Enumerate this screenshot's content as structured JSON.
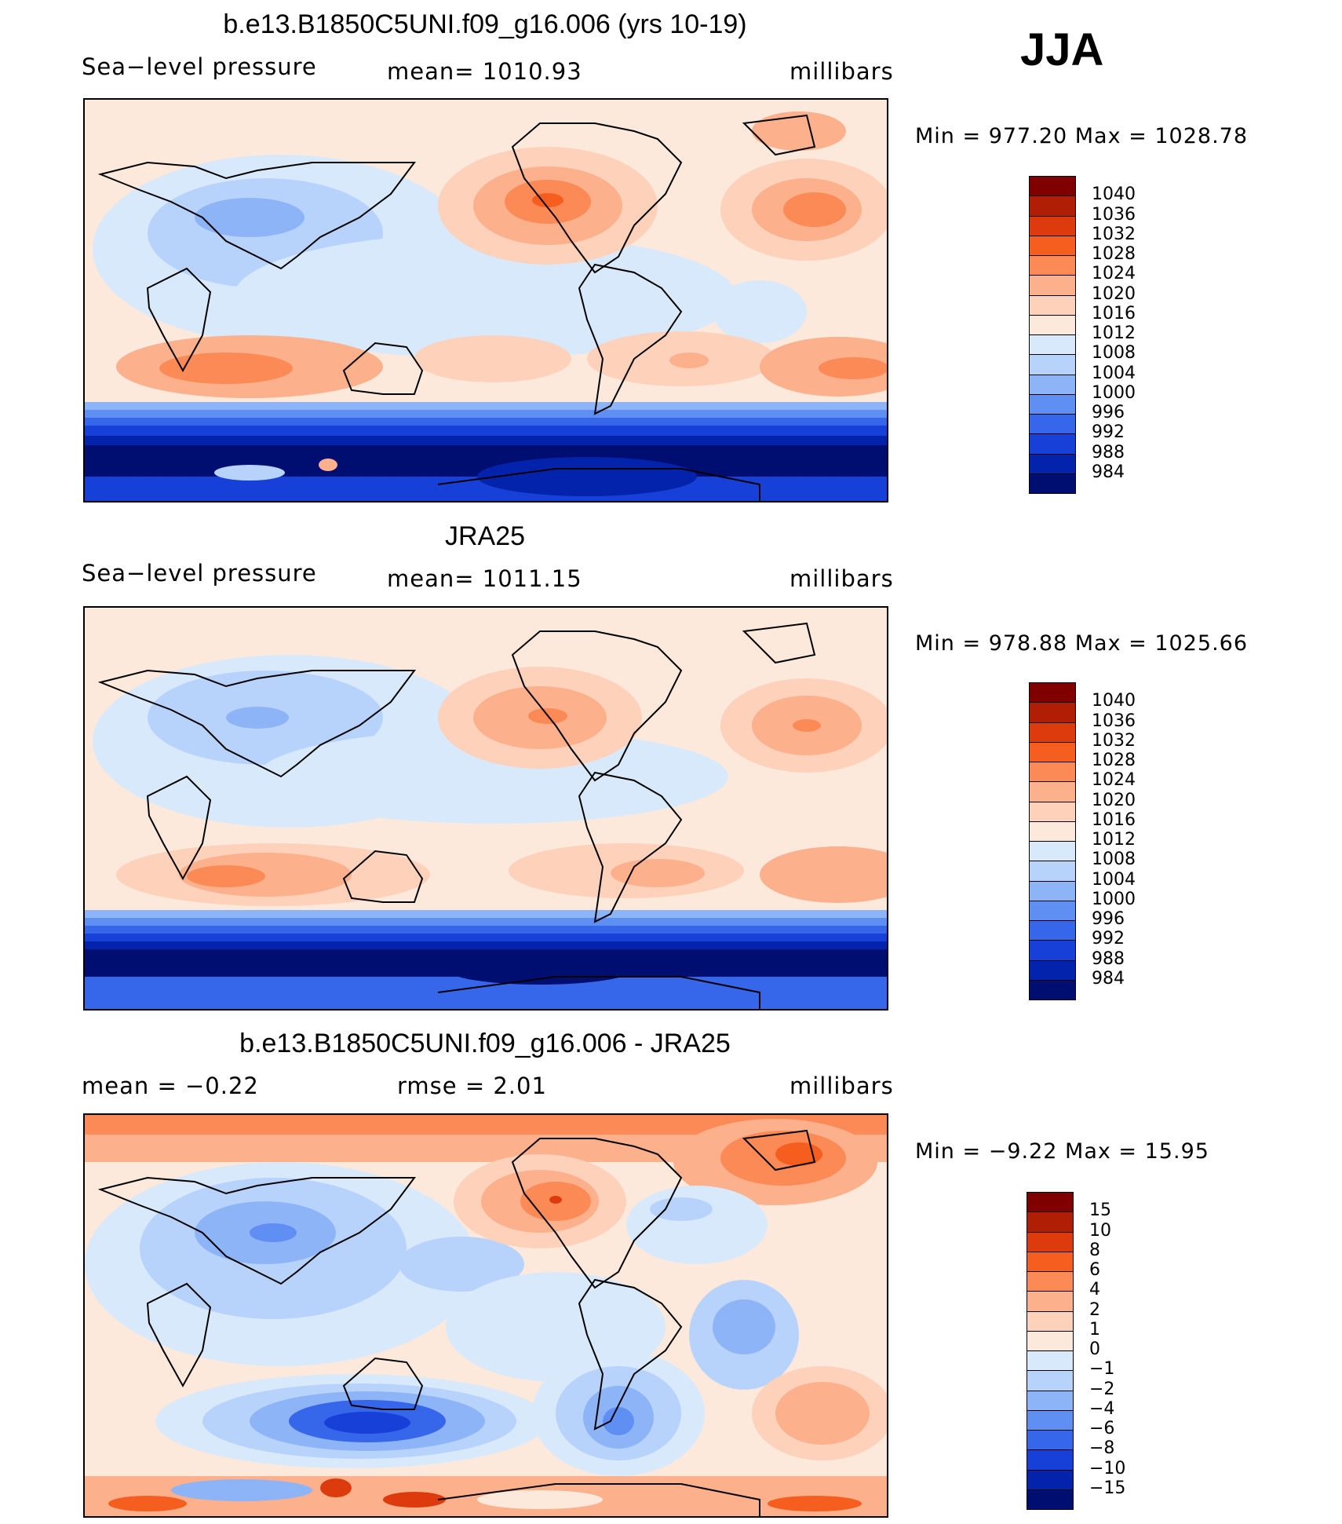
{
  "season": "JJA",
  "panels": [
    {
      "title": "b.e13.B1850C5UNI.f09_g16.006 (yrs 10-19)",
      "left": "Sea−level pressure",
      "center": "mean=  1010.93",
      "right": "millibars",
      "minmax": "Min  =  977.20  Max  =  1028.78",
      "kind": "abs"
    },
    {
      "title": "JRA25",
      "left": "Sea−level pressure",
      "center": "mean=  1011.15",
      "right": "millibars",
      "minmax": "Min  =  978.88  Max  =  1025.66",
      "kind": "abs2"
    },
    {
      "title": "b.e13.B1850C5UNI.f09_g16.006 - JRA25",
      "left": "mean  =     −0.22",
      "center": "rmse  =     2.01",
      "right": "millibars",
      "minmax": "Min  =    −9.22  Max  =     15.95",
      "kind": "diff"
    }
  ],
  "colorbars": {
    "abs": {
      "labels": [
        "1040",
        "1036",
        "1032",
        "1028",
        "1024",
        "1020",
        "1016",
        "1012",
        "1008",
        "1004",
        "1000",
        "996",
        "992",
        "988",
        "984"
      ],
      "colors": [
        "#800000",
        "#b01e05",
        "#dd3b0e",
        "#f65e1f",
        "#fc8a56",
        "#fcb08b",
        "#fdd1ba",
        "#fde9db",
        "#d8e9fb",
        "#b8d3fb",
        "#8eb4f8",
        "#5f8ff3",
        "#3666ea",
        "#1640d7",
        "#0423ad",
        "#000e72"
      ]
    },
    "diff": {
      "labels": [
        "15",
        "10",
        "8",
        "6",
        "4",
        "2",
        "1",
        "0",
        "−1",
        "−2",
        "−4",
        "−6",
        "−8",
        "−10",
        "−15"
      ],
      "colors": [
        "#800000",
        "#b01e05",
        "#dd3b0e",
        "#f65e1f",
        "#fc8a56",
        "#fcb08b",
        "#fdd1ba",
        "#fde9db",
        "#d8e9fb",
        "#b8d3fb",
        "#8eb4f8",
        "#5f8ff3",
        "#3666ea",
        "#1640d7",
        "#0423ad",
        "#000e72"
      ]
    }
  }
}
